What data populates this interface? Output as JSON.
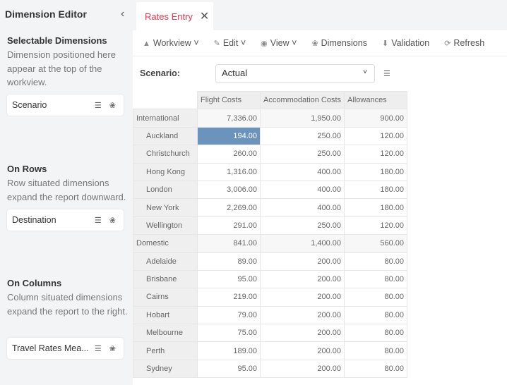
{
  "sidebar": {
    "title": "Dimension Editor",
    "sections": [
      {
        "heading": "Selectable Dimensions",
        "desc": "Dimension positioned here appear at the top of the workview.",
        "card": "Scenario"
      },
      {
        "heading": "On Rows",
        "desc": "Row situated dimensions expand the report downward.",
        "card": "Destination"
      },
      {
        "heading": "On Columns",
        "desc": "Column situated dimensions expand the report to the right.",
        "card": "Travel Rates Mea..."
      }
    ]
  },
  "tab": {
    "label": "Rates Entry"
  },
  "toolbar": {
    "workview": "Workview",
    "edit": "Edit",
    "view": "View",
    "dimensions": "Dimensions",
    "validation": "Validation",
    "refresh": "Refresh"
  },
  "scenario": {
    "label": "Scenario:",
    "value": "Actual"
  },
  "grid": {
    "columns": [
      "Flight Costs",
      "Accommodation Costs",
      "Allowances"
    ],
    "rows": [
      {
        "name": "International",
        "group": true,
        "values": [
          "7,336.00",
          "1,950.00",
          "900.00"
        ]
      },
      {
        "name": "Auckland",
        "values": [
          "194.00",
          "250.00",
          "120.00"
        ],
        "selected": 0
      },
      {
        "name": "Christchurch",
        "values": [
          "260.00",
          "250.00",
          "120.00"
        ]
      },
      {
        "name": "Hong Kong",
        "values": [
          "1,316.00",
          "400.00",
          "180.00"
        ]
      },
      {
        "name": "London",
        "values": [
          "3,006.00",
          "400.00",
          "180.00"
        ]
      },
      {
        "name": "New York",
        "values": [
          "2,269.00",
          "400.00",
          "180.00"
        ]
      },
      {
        "name": "Wellington",
        "values": [
          "291.00",
          "250.00",
          "120.00"
        ]
      },
      {
        "name": "Domestic",
        "group": true,
        "values": [
          "841.00",
          "1,400.00",
          "560.00"
        ]
      },
      {
        "name": "Adelaide",
        "values": [
          "89.00",
          "200.00",
          "80.00"
        ]
      },
      {
        "name": "Brisbane",
        "values": [
          "95.00",
          "200.00",
          "80.00"
        ]
      },
      {
        "name": "Cairns",
        "values": [
          "219.00",
          "200.00",
          "80.00"
        ]
      },
      {
        "name": "Hobart",
        "values": [
          "79.00",
          "200.00",
          "80.00"
        ]
      },
      {
        "name": "Melbourne",
        "values": [
          "75.00",
          "200.00",
          "80.00"
        ]
      },
      {
        "name": "Perth",
        "values": [
          "189.00",
          "200.00",
          "80.00"
        ]
      },
      {
        "name": "Sydney",
        "values": [
          "95.00",
          "200.00",
          "80.00"
        ]
      }
    ]
  },
  "colors": {
    "accent": "#e8334a",
    "selected_cell": "#6b93bb"
  }
}
